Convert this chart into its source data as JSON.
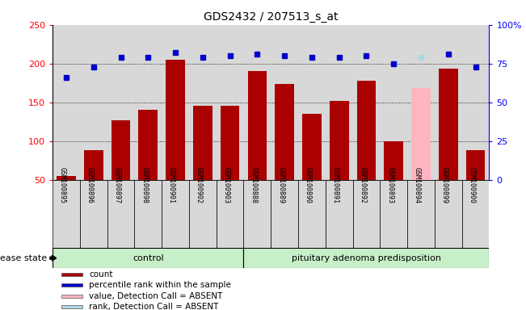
{
  "title": "GDS2432 / 207513_s_at",
  "samples": [
    "GSM100895",
    "GSM100896",
    "GSM100897",
    "GSM100898",
    "GSM100901",
    "GSM100902",
    "GSM100903",
    "GSM100888",
    "GSM100889",
    "GSM100890",
    "GSM100891",
    "GSM100892",
    "GSM100893",
    "GSM100894",
    "GSM100899",
    "GSM100900"
  ],
  "bar_values": [
    55,
    88,
    127,
    140,
    205,
    146,
    146,
    190,
    174,
    135,
    152,
    178,
    100,
    168,
    193,
    88
  ],
  "bar_colors": [
    "#aa0000",
    "#aa0000",
    "#aa0000",
    "#aa0000",
    "#aa0000",
    "#aa0000",
    "#aa0000",
    "#aa0000",
    "#aa0000",
    "#aa0000",
    "#aa0000",
    "#aa0000",
    "#aa0000",
    "#ffb6c1",
    "#aa0000",
    "#aa0000"
  ],
  "dot_colors": [
    "#0000cc",
    "#0000cc",
    "#0000cc",
    "#0000cc",
    "#0000cc",
    "#0000cc",
    "#0000cc",
    "#0000cc",
    "#0000cc",
    "#0000cc",
    "#0000cc",
    "#0000cc",
    "#0000cc",
    "#add8e6",
    "#0000cc",
    "#0000cc"
  ],
  "dot_right_axis_values": [
    66,
    73,
    79,
    79,
    82,
    79,
    80,
    81,
    80,
    79,
    79,
    80,
    75,
    79,
    81,
    73
  ],
  "group_labels": [
    "control",
    "pituitary adenoma predisposition"
  ],
  "group_counts": [
    7,
    9
  ],
  "ylim_left": [
    50,
    250
  ],
  "ylim_right": [
    0,
    100
  ],
  "yticks_left": [
    50,
    100,
    150,
    200,
    250
  ],
  "yticks_right": [
    0,
    25,
    50,
    75,
    100
  ],
  "grid_values": [
    100,
    150,
    200
  ],
  "disease_state_label": "disease state",
  "legend_items": [
    {
      "label": "count",
      "color": "#aa0000"
    },
    {
      "label": "percentile rank within the sample",
      "color": "#0000cc"
    },
    {
      "label": "value, Detection Call = ABSENT",
      "color": "#ffb6c1"
    },
    {
      "label": "rank, Detection Call = ABSENT",
      "color": "#add8e6"
    }
  ],
  "figsize": [
    6.51,
    3.84
  ],
  "dpi": 100
}
